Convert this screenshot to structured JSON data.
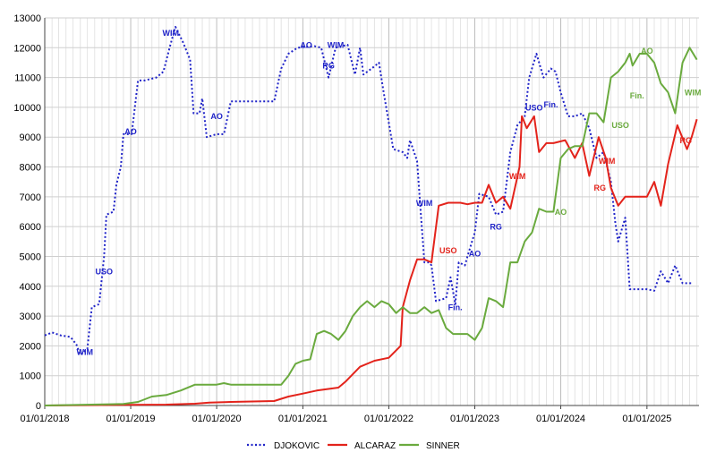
{
  "chart_data": {
    "type": "line",
    "title": "",
    "xlabel": "",
    "ylabel": "",
    "ylim": [
      0,
      13000
    ],
    "yticks": [
      "0",
      "1000",
      "2000",
      "3000",
      "4000",
      "5000",
      "6000",
      "7000",
      "8000",
      "9000",
      "10000",
      "11000",
      "12000",
      "13000"
    ],
    "xticks": [
      "01/01/2018",
      "01/01/2019",
      "01/01/2020",
      "01/01/2021",
      "01/01/2022",
      "01/01/2023",
      "01/01/2024",
      "01/01/2025"
    ],
    "xlim": [
      "2018-01-01",
      "2025-08-10"
    ],
    "grid": true,
    "legend_position": "bottom",
    "series": [
      {
        "name": "DJOKOVIC",
        "color": "#1f23c8",
        "style": "dotted",
        "points": [
          [
            "2018-01-01",
            2350
          ],
          [
            "2018-02-01",
            2450
          ],
          [
            "2018-03-10",
            2350
          ],
          [
            "2018-04-20",
            2300
          ],
          [
            "2018-05-15",
            2050
          ],
          [
            "2018-06-01",
            1700
          ],
          [
            "2018-07-01",
            1900
          ],
          [
            "2018-07-20",
            3300
          ],
          [
            "2018-08-20",
            3400
          ],
          [
            "2018-09-10",
            5000
          ],
          [
            "2018-09-20",
            6400
          ],
          [
            "2018-10-20",
            6500
          ],
          [
            "2018-11-01",
            7400
          ],
          [
            "2018-11-20",
            8000
          ],
          [
            "2018-12-01",
            9100
          ],
          [
            "2019-01-05",
            9100
          ],
          [
            "2019-02-01",
            10900
          ],
          [
            "2019-03-01",
            10900
          ],
          [
            "2019-04-20",
            11000
          ],
          [
            "2019-05-20",
            11200
          ],
          [
            "2019-06-15",
            12000
          ],
          [
            "2019-07-10",
            12700
          ],
          [
            "2019-08-10",
            12200
          ],
          [
            "2019-09-10",
            11600
          ],
          [
            "2019-09-25",
            9800
          ],
          [
            "2019-10-20",
            9800
          ],
          [
            "2019-11-01",
            10300
          ],
          [
            "2019-11-20",
            9000
          ],
          [
            "2020-01-01",
            9100
          ],
          [
            "2020-02-01",
            9100
          ],
          [
            "2020-03-01",
            10200
          ],
          [
            "2020-06-01",
            10200
          ],
          [
            "2020-09-01",
            10200
          ],
          [
            "2020-10-01",
            11300
          ],
          [
            "2020-11-01",
            11800
          ],
          [
            "2020-12-10",
            12000
          ],
          [
            "2021-02-20",
            12050
          ],
          [
            "2021-03-20",
            12000
          ],
          [
            "2021-04-20",
            11000
          ],
          [
            "2021-05-20",
            12000
          ],
          [
            "2021-07-10",
            12100
          ],
          [
            "2021-08-10",
            11100
          ],
          [
            "2021-09-01",
            12000
          ],
          [
            "2021-09-15",
            11100
          ],
          [
            "2021-10-20",
            11300
          ],
          [
            "2021-11-20",
            11500
          ],
          [
            "2021-12-10",
            10500
          ],
          [
            "2022-01-20",
            8600
          ],
          [
            "2022-03-01",
            8500
          ],
          [
            "2022-03-20",
            8300
          ],
          [
            "2022-04-01",
            8900
          ],
          [
            "2022-05-01",
            8200
          ],
          [
            "2022-05-20",
            6100
          ],
          [
            "2022-06-01",
            4800
          ],
          [
            "2022-06-20",
            4800
          ],
          [
            "2022-07-01",
            4700
          ],
          [
            "2022-07-20",
            3500
          ],
          [
            "2022-09-01",
            3600
          ],
          [
            "2022-09-20",
            4300
          ],
          [
            "2022-10-10",
            3400
          ],
          [
            "2022-10-25",
            4800
          ],
          [
            "2022-11-20",
            4700
          ],
          [
            "2022-12-01",
            5000
          ],
          [
            "2023-01-01",
            5800
          ],
          [
            "2023-01-20",
            7100
          ],
          [
            "2023-03-01",
            7000
          ],
          [
            "2023-04-01",
            6400
          ],
          [
            "2023-05-01",
            6500
          ],
          [
            "2023-06-01",
            8500
          ],
          [
            "2023-07-01",
            9400
          ],
          [
            "2023-08-01",
            9700
          ],
          [
            "2023-08-20",
            11000
          ],
          [
            "2023-09-20",
            11800
          ],
          [
            "2023-10-20",
            11000
          ],
          [
            "2023-11-20",
            11300
          ],
          [
            "2023-12-10",
            11200
          ],
          [
            "2024-01-01",
            10500
          ],
          [
            "2024-02-01",
            9700
          ],
          [
            "2024-03-01",
            9700
          ],
          [
            "2024-04-01",
            9800
          ],
          [
            "2024-05-01",
            9300
          ],
          [
            "2024-06-01",
            8300
          ],
          [
            "2024-07-01",
            8500
          ],
          [
            "2024-08-01",
            7500
          ],
          [
            "2024-08-20",
            6100
          ],
          [
            "2024-09-01",
            5500
          ],
          [
            "2024-10-01",
            6300
          ],
          [
            "2024-10-20",
            3900
          ],
          [
            "2024-12-01",
            3900
          ],
          [
            "2025-01-01",
            3900
          ],
          [
            "2025-02-01",
            3850
          ],
          [
            "2025-03-01",
            4500
          ],
          [
            "2025-04-01",
            4100
          ],
          [
            "2025-05-01",
            4700
          ],
          [
            "2025-06-01",
            4100
          ],
          [
            "2025-07-10",
            4100
          ]
        ]
      },
      {
        "name": "ALCARAZ",
        "color": "#e3231b",
        "style": "solid",
        "points": [
          [
            "2018-01-01",
            0
          ],
          [
            "2019-06-01",
            30
          ],
          [
            "2019-10-01",
            60
          ],
          [
            "2019-12-01",
            100
          ],
          [
            "2020-03-01",
            120
          ],
          [
            "2020-09-01",
            150
          ],
          [
            "2020-11-01",
            300
          ],
          [
            "2021-01-01",
            400
          ],
          [
            "2021-03-01",
            500
          ],
          [
            "2021-06-01",
            600
          ],
          [
            "2021-07-01",
            800
          ],
          [
            "2021-09-01",
            1300
          ],
          [
            "2021-11-01",
            1500
          ],
          [
            "2022-01-01",
            1600
          ],
          [
            "2022-02-20",
            2000
          ],
          [
            "2022-03-01",
            3300
          ],
          [
            "2022-04-01",
            4200
          ],
          [
            "2022-05-01",
            4900
          ],
          [
            "2022-06-01",
            4900
          ],
          [
            "2022-07-01",
            4800
          ],
          [
            "2022-08-01",
            6700
          ],
          [
            "2022-09-10",
            6800
          ],
          [
            "2022-10-01",
            6800
          ],
          [
            "2022-11-01",
            6800
          ],
          [
            "2022-12-01",
            6750
          ],
          [
            "2023-01-01",
            6800
          ],
          [
            "2023-02-01",
            6800
          ],
          [
            "2023-03-01",
            7400
          ],
          [
            "2023-04-01",
            6800
          ],
          [
            "2023-05-01",
            7000
          ],
          [
            "2023-06-01",
            6600
          ],
          [
            "2023-07-10",
            8000
          ],
          [
            "2023-07-20",
            9700
          ],
          [
            "2023-08-10",
            9300
          ],
          [
            "2023-09-10",
            9700
          ],
          [
            "2023-10-01",
            8500
          ],
          [
            "2023-11-01",
            8800
          ],
          [
            "2023-12-01",
            8800
          ],
          [
            "2024-01-20",
            8900
          ],
          [
            "2024-03-01",
            8300
          ],
          [
            "2024-04-01",
            8800
          ],
          [
            "2024-05-01",
            7700
          ],
          [
            "2024-06-10",
            9000
          ],
          [
            "2024-07-10",
            8300
          ],
          [
            "2024-08-01",
            7300
          ],
          [
            "2024-09-01",
            6700
          ],
          [
            "2024-10-01",
            7000
          ],
          [
            "2024-11-01",
            7000
          ],
          [
            "2024-12-01",
            7000
          ],
          [
            "2025-01-01",
            7000
          ],
          [
            "2025-02-01",
            7500
          ],
          [
            "2025-03-01",
            6700
          ],
          [
            "2025-04-01",
            8100
          ],
          [
            "2025-05-10",
            9400
          ],
          [
            "2025-06-20",
            8600
          ],
          [
            "2025-07-10",
            9000
          ],
          [
            "2025-08-01",
            9600
          ]
        ]
      },
      {
        "name": "SINNER",
        "color": "#6aaa3e",
        "style": "solid",
        "points": [
          [
            "2018-01-01",
            0
          ],
          [
            "2018-12-01",
            50
          ],
          [
            "2019-02-01",
            120
          ],
          [
            "2019-04-01",
            300
          ],
          [
            "2019-06-01",
            350
          ],
          [
            "2019-08-01",
            500
          ],
          [
            "2019-10-01",
            700
          ],
          [
            "2020-01-01",
            700
          ],
          [
            "2020-02-01",
            750
          ],
          [
            "2020-03-01",
            700
          ],
          [
            "2020-10-01",
            700
          ],
          [
            "2020-11-01",
            1000
          ],
          [
            "2020-12-01",
            1400
          ],
          [
            "2021-01-01",
            1500
          ],
          [
            "2021-02-01",
            1550
          ],
          [
            "2021-03-01",
            2400
          ],
          [
            "2021-04-01",
            2500
          ],
          [
            "2021-05-01",
            2400
          ],
          [
            "2021-06-01",
            2200
          ],
          [
            "2021-07-01",
            2500
          ],
          [
            "2021-08-01",
            3000
          ],
          [
            "2021-09-01",
            3300
          ],
          [
            "2021-10-01",
            3500
          ],
          [
            "2021-11-01",
            3300
          ],
          [
            "2021-12-01",
            3500
          ],
          [
            "2022-01-01",
            3400
          ],
          [
            "2022-02-01",
            3100
          ],
          [
            "2022-03-01",
            3300
          ],
          [
            "2022-04-01",
            3100
          ],
          [
            "2022-05-01",
            3100
          ],
          [
            "2022-06-01",
            3300
          ],
          [
            "2022-07-01",
            3100
          ],
          [
            "2022-08-01",
            3200
          ],
          [
            "2022-09-01",
            2600
          ],
          [
            "2022-10-01",
            2400
          ],
          [
            "2022-11-01",
            2400
          ],
          [
            "2022-12-01",
            2400
          ],
          [
            "2023-01-01",
            2200
          ],
          [
            "2023-02-01",
            2600
          ],
          [
            "2023-03-01",
            3600
          ],
          [
            "2023-04-01",
            3500
          ],
          [
            "2023-05-01",
            3300
          ],
          [
            "2023-06-01",
            4800
          ],
          [
            "2023-07-01",
            4800
          ],
          [
            "2023-08-01",
            5500
          ],
          [
            "2023-09-01",
            5800
          ],
          [
            "2023-10-01",
            6600
          ],
          [
            "2023-11-01",
            6500
          ],
          [
            "2023-12-01",
            6500
          ],
          [
            "2024-01-01",
            8300
          ],
          [
            "2024-02-01",
            8600
          ],
          [
            "2024-03-01",
            8700
          ],
          [
            "2024-04-01",
            8700
          ],
          [
            "2024-05-01",
            9800
          ],
          [
            "2024-06-01",
            9800
          ],
          [
            "2024-07-01",
            9500
          ],
          [
            "2024-08-01",
            11000
          ],
          [
            "2024-09-01",
            11200
          ],
          [
            "2024-10-01",
            11500
          ],
          [
            "2024-10-20",
            11800
          ],
          [
            "2024-11-01",
            11400
          ],
          [
            "2024-12-01",
            11800
          ],
          [
            "2025-01-01",
            11800
          ],
          [
            "2025-02-01",
            11500
          ],
          [
            "2025-03-01",
            10800
          ],
          [
            "2025-04-01",
            10500
          ],
          [
            "2025-05-01",
            9800
          ],
          [
            "2025-06-01",
            11500
          ],
          [
            "2025-07-01",
            12000
          ],
          [
            "2025-08-01",
            11600
          ]
        ]
      }
    ],
    "annotations": [
      {
        "text": "WIM",
        "series": "DJOKOVIC",
        "x": "2018-06-20",
        "y": 1700
      },
      {
        "text": "USO",
        "series": "DJOKOVIC",
        "x": "2018-09-10",
        "y": 4400
      },
      {
        "text": "AO",
        "series": "DJOKOVIC",
        "x": "2019-01-01",
        "y": 9100
      },
      {
        "text": "WIM",
        "series": "DJOKOVIC",
        "x": "2019-06-20",
        "y": 12400
      },
      {
        "text": "AO",
        "series": "DJOKOVIC",
        "x": "2020-01-01",
        "y": 9600
      },
      {
        "text": "AO",
        "series": "DJOKOVIC",
        "x": "2021-01-15",
        "y": 12000
      },
      {
        "text": "RG",
        "series": "DJOKOVIC",
        "x": "2021-04-20",
        "y": 11300
      },
      {
        "text": "WIM",
        "series": "DJOKOVIC",
        "x": "2021-05-20",
        "y": 12000
      },
      {
        "text": "WIM",
        "series": "DJOKOVIC",
        "x": "2022-06-01",
        "y": 6700
      },
      {
        "text": "Fin.",
        "series": "DJOKOVIC",
        "x": "2022-10-10",
        "y": 3200
      },
      {
        "text": "AO",
        "series": "DJOKOVIC",
        "x": "2023-01-01",
        "y": 5000
      },
      {
        "text": "RG",
        "series": "DJOKOVIC",
        "x": "2023-04-01",
        "y": 5900
      },
      {
        "text": "USO",
        "series": "DJOKOVIC",
        "x": "2023-09-10",
        "y": 9900
      },
      {
        "text": "Fin.",
        "series": "DJOKOVIC",
        "x": "2023-11-20",
        "y": 10000
      },
      {
        "text": "USO",
        "series": "ALCARAZ",
        "x": "2022-09-10",
        "y": 5100
      },
      {
        "text": "WIM",
        "series": "ALCARAZ",
        "x": "2023-07-01",
        "y": 7600
      },
      {
        "text": "RG",
        "series": "ALCARAZ",
        "x": "2024-06-15",
        "y": 7200
      },
      {
        "text": "WIM",
        "series": "ALCARAZ",
        "x": "2024-07-15",
        "y": 8100
      },
      {
        "text": "RG",
        "series": "ALCARAZ",
        "x": "2025-06-15",
        "y": 8800
      },
      {
        "text": "AO",
        "series": "SINNER",
        "x": "2024-01-01",
        "y": 6400
      },
      {
        "text": "USO",
        "series": "SINNER",
        "x": "2024-09-10",
        "y": 9300
      },
      {
        "text": "Fin.",
        "series": "SINNER",
        "x": "2024-11-20",
        "y": 10300
      },
      {
        "text": "AO",
        "series": "SINNER",
        "x": "2025-01-01",
        "y": 11800
      },
      {
        "text": "WIM",
        "series": "SINNER",
        "x": "2025-07-15",
        "y": 10400
      }
    ]
  }
}
